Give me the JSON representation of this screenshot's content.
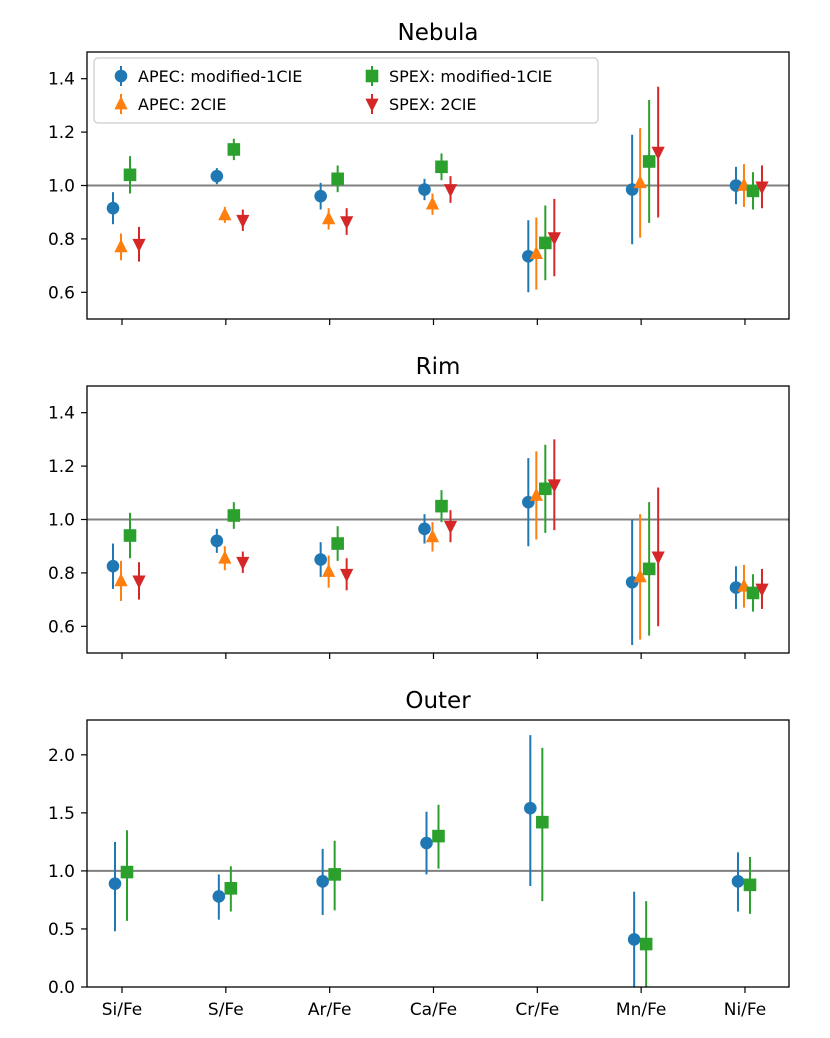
{
  "chart_data": [
    {
      "type": "scatter",
      "title": "Nebula",
      "categories": [
        "Si/Fe",
        "S/Fe",
        "Ar/Fe",
        "Ca/Fe",
        "Cr/Fe",
        "Mn/Fe",
        "Ni/Fe"
      ],
      "ylim": [
        0.5,
        1.5
      ],
      "yticks": [
        "0.6",
        "0.8",
        "1.0",
        "1.2",
        "1.4"
      ],
      "reference_line": 1.0,
      "show_xtick_labels": false,
      "legend": "top-left",
      "series": [
        {
          "name": "APEC: modified-1CIE",
          "marker": "circle",
          "color": "#1f77b4",
          "values": [
            0.915,
            1.035,
            0.96,
            0.985,
            0.735,
            0.985,
            1.0
          ],
          "err_lo": [
            0.06,
            0.03,
            0.05,
            0.04,
            0.135,
            0.205,
            0.07
          ],
          "err_hi": [
            0.06,
            0.03,
            0.05,
            0.04,
            0.135,
            0.205,
            0.07
          ]
        },
        {
          "name": "APEC: 2CIE",
          "marker": "triangle-up",
          "color": "#ff7f0e",
          "values": [
            0.77,
            0.89,
            0.875,
            0.93,
            0.745,
            1.01,
            1.0
          ],
          "err_lo": [
            0.05,
            0.03,
            0.04,
            0.04,
            0.135,
            0.205,
            0.08
          ],
          "err_hi": [
            0.05,
            0.03,
            0.04,
            0.04,
            0.135,
            0.205,
            0.08
          ]
        },
        {
          "name": "SPEX: modified-1CIE",
          "marker": "square",
          "color": "#2ca02c",
          "values": [
            1.04,
            1.135,
            1.025,
            1.07,
            0.785,
            1.09,
            0.98
          ],
          "err_lo": [
            0.07,
            0.04,
            0.05,
            0.05,
            0.14,
            0.23,
            0.07
          ],
          "err_hi": [
            0.07,
            0.04,
            0.05,
            0.05,
            0.14,
            0.23,
            0.07
          ]
        },
        {
          "name": "SPEX: 2CIE",
          "marker": "triangle-down",
          "color": "#d62728",
          "values": [
            0.78,
            0.87,
            0.865,
            0.985,
            0.805,
            1.125,
            0.995
          ],
          "err_lo": [
            0.065,
            0.04,
            0.05,
            0.05,
            0.145,
            0.245,
            0.08
          ],
          "err_hi": [
            0.065,
            0.04,
            0.05,
            0.05,
            0.145,
            0.245,
            0.08
          ]
        }
      ]
    },
    {
      "type": "scatter",
      "title": "Rim",
      "categories": [
        "Si/Fe",
        "S/Fe",
        "Ar/Fe",
        "Ca/Fe",
        "Cr/Fe",
        "Mn/Fe",
        "Ni/Fe"
      ],
      "ylim": [
        0.5,
        1.5
      ],
      "yticks": [
        "0.6",
        "0.8",
        "1.0",
        "1.2",
        "1.4"
      ],
      "reference_line": 1.0,
      "show_xtick_labels": false,
      "series": [
        {
          "name": "APEC: modified-1CIE",
          "marker": "circle",
          "color": "#1f77b4",
          "values": [
            0.825,
            0.92,
            0.85,
            0.965,
            1.065,
            0.765,
            0.745
          ],
          "err_lo": [
            0.085,
            0.045,
            0.065,
            0.055,
            0.165,
            0.235,
            0.08
          ],
          "err_hi": [
            0.085,
            0.045,
            0.065,
            0.055,
            0.165,
            0.235,
            0.08
          ]
        },
        {
          "name": "APEC: 2CIE",
          "marker": "triangle-up",
          "color": "#ff7f0e",
          "values": [
            0.77,
            0.855,
            0.805,
            0.935,
            1.09,
            0.785,
            0.75
          ],
          "err_lo": [
            0.075,
            0.045,
            0.06,
            0.055,
            0.165,
            0.235,
            0.08
          ],
          "err_hi": [
            0.075,
            0.045,
            0.06,
            0.055,
            0.165,
            0.235,
            0.08
          ]
        },
        {
          "name": "SPEX: modified-1CIE",
          "marker": "square",
          "color": "#2ca02c",
          "values": [
            0.94,
            1.015,
            0.91,
            1.05,
            1.115,
            0.815,
            0.725
          ],
          "err_lo": [
            0.085,
            0.05,
            0.065,
            0.06,
            0.165,
            0.25,
            0.07
          ],
          "err_hi": [
            0.085,
            0.05,
            0.065,
            0.06,
            0.165,
            0.25,
            0.07
          ]
        },
        {
          "name": "SPEX: 2CIE",
          "marker": "triangle-down",
          "color": "#d62728",
          "values": [
            0.77,
            0.84,
            0.795,
            0.975,
            1.13,
            0.86,
            0.74
          ],
          "err_lo": [
            0.07,
            0.04,
            0.06,
            0.06,
            0.17,
            0.26,
            0.075
          ],
          "err_hi": [
            0.07,
            0.04,
            0.06,
            0.06,
            0.17,
            0.26,
            0.075
          ]
        }
      ]
    },
    {
      "type": "scatter",
      "title": "Outer",
      "categories": [
        "Si/Fe",
        "S/Fe",
        "Ar/Fe",
        "Ca/Fe",
        "Cr/Fe",
        "Mn/Fe",
        "Ni/Fe"
      ],
      "ylim": [
        0.0,
        2.3
      ],
      "yticks": [
        "0.0",
        "0.5",
        "1.0",
        "1.5",
        "2.0"
      ],
      "reference_line": 1.0,
      "show_xtick_labels": true,
      "series": [
        {
          "name": "APEC: modified-1CIE",
          "marker": "circle",
          "color": "#1f77b4",
          "values": [
            0.89,
            0.78,
            0.91,
            1.24,
            1.54,
            0.41,
            0.91
          ],
          "err_lo": [
            0.41,
            0.2,
            0.29,
            0.27,
            0.67,
            0.41,
            0.26
          ],
          "err_hi": [
            0.36,
            0.19,
            0.28,
            0.27,
            0.63,
            0.41,
            0.25
          ]
        },
        {
          "name": "SPEX: modified-1CIE",
          "marker": "square",
          "color": "#2ca02c",
          "values": [
            0.99,
            0.85,
            0.97,
            1.3,
            1.42,
            0.37,
            0.88
          ],
          "err_lo": [
            0.42,
            0.2,
            0.31,
            0.28,
            0.68,
            0.37,
            0.25
          ],
          "err_hi": [
            0.36,
            0.19,
            0.29,
            0.27,
            0.64,
            0.37,
            0.24
          ]
        }
      ]
    }
  ]
}
